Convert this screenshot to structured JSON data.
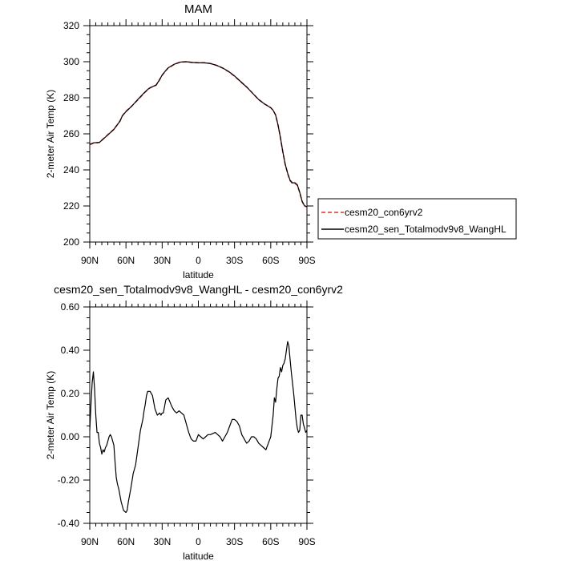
{
  "chart_data": [
    {
      "type": "line",
      "title": "MAM",
      "xlabel": "latitude",
      "ylabel": "2-meter Air Temp (K)",
      "xlim": [
        90,
        -90
      ],
      "ylim": [
        200,
        320
      ],
      "x_ticks": [
        90,
        60,
        30,
        0,
        -30,
        -60,
        -90
      ],
      "x_tick_labels": [
        "90N",
        "60N",
        "30N",
        "0",
        "30S",
        "60S",
        "90S"
      ],
      "y_ticks": [
        200,
        220,
        240,
        260,
        280,
        300,
        320
      ],
      "y_tick_labels": [
        "200",
        "220",
        "240",
        "260",
        "280",
        "300",
        "320"
      ],
      "grid": false,
      "legend_position": "right",
      "series": [
        {
          "name": "cesm20_con6yrv2",
          "color": "#e0302c",
          "dash": "dashed",
          "x": [
            90,
            87,
            84,
            82,
            80,
            75,
            70,
            65,
            63,
            60,
            55,
            50,
            45,
            42,
            40,
            35,
            33,
            30,
            27,
            25,
            20,
            15,
            10,
            5,
            0,
            -5,
            -10,
            -15,
            -20,
            -25,
            -30,
            -35,
            -40,
            -45,
            -50,
            -55,
            -60,
            -62,
            -64,
            -66,
            -68,
            -70,
            -72,
            -74,
            -76,
            -78,
            -80,
            -82,
            -84,
            -86,
            -88,
            -90
          ],
          "y": [
            254,
            254.8,
            255,
            255.2,
            256.5,
            259.5,
            262.5,
            267,
            270,
            272.5,
            275.5,
            279,
            282.5,
            284.5,
            285.5,
            287,
            289,
            292.5,
            295,
            296.5,
            298.5,
            299.8,
            300,
            299.6,
            299.4,
            299.4,
            299,
            298,
            296.5,
            294.5,
            292,
            289,
            286,
            282.5,
            279,
            276.5,
            274.5,
            273,
            270.5,
            265,
            258,
            250,
            243,
            238,
            234,
            232.5,
            232.5,
            231.5,
            227.5,
            222.5,
            220,
            219.5
          ]
        },
        {
          "name": "cesm20_sen_Totalmodv9v8_WangHL",
          "color": "#000000",
          "dash": "solid",
          "x": [
            90,
            87,
            84,
            82,
            80,
            75,
            70,
            65,
            63,
            60,
            55,
            50,
            45,
            42,
            40,
            35,
            33,
            30,
            27,
            25,
            20,
            15,
            10,
            5,
            0,
            -5,
            -10,
            -15,
            -20,
            -25,
            -30,
            -35,
            -40,
            -45,
            -50,
            -55,
            -60,
            -62,
            -64,
            -66,
            -68,
            -70,
            -72,
            -74,
            -76,
            -78,
            -80,
            -82,
            -84,
            -86,
            -88,
            -90
          ],
          "y": [
            254.2,
            255,
            255.2,
            255.3,
            256.4,
            259.4,
            262.5,
            267,
            270,
            272.3,
            275.5,
            279.2,
            282.7,
            284.6,
            285.6,
            287.1,
            289.1,
            292.6,
            295.1,
            296.6,
            298.6,
            299.8,
            300,
            299.6,
            299.4,
            299.4,
            299,
            298,
            296.6,
            294.6,
            292.1,
            289,
            286,
            282.5,
            279,
            276.5,
            274.5,
            273,
            270.5,
            265,
            258,
            250,
            243.1,
            238.2,
            234.3,
            232.8,
            232.9,
            231.8,
            227.6,
            222.6,
            220.1,
            219.6
          ]
        }
      ]
    },
    {
      "type": "line",
      "title": "cesm20_sen_Totalmodv9v8_WangHL - cesm20_con6yrv2",
      "xlabel": "latitude",
      "ylabel": "2-meter Air Temp (K)",
      "xlim": [
        90,
        -90
      ],
      "ylim": [
        -0.4,
        0.6
      ],
      "x_ticks": [
        90,
        60,
        30,
        0,
        -30,
        -60,
        -90
      ],
      "x_tick_labels": [
        "90N",
        "60N",
        "30N",
        "0",
        "30S",
        "60S",
        "90S"
      ],
      "y_ticks": [
        -0.4,
        -0.2,
        0,
        0.2,
        0.4,
        0.6
      ],
      "y_tick_labels": [
        "-0.40",
        "-0.20",
        "0.00",
        "0.20",
        "0.40",
        "0.60"
      ],
      "grid": false,
      "series": [
        {
          "color": "#000000",
          "dash": "solid",
          "x": [
            90,
            89,
            88,
            87,
            86,
            85,
            84,
            83,
            82,
            81,
            80,
            79,
            78,
            77,
            76,
            75,
            74,
            73,
            72,
            71,
            70,
            69,
            68,
            67,
            66,
            64,
            62,
            60,
            59,
            58,
            56,
            54,
            52,
            50,
            48,
            46,
            45,
            44,
            43,
            42,
            40,
            38,
            36,
            34,
            32,
            31,
            30,
            29,
            28,
            27,
            25,
            22,
            20,
            18,
            16,
            14,
            12,
            10,
            8,
            6,
            4,
            2,
            0,
            -2,
            -4,
            -6,
            -8,
            -10,
            -12,
            -14,
            -16,
            -18,
            -20,
            -22,
            -24,
            -26,
            -28,
            -30,
            -32,
            -34,
            -36,
            -38,
            -40,
            -42,
            -44,
            -46,
            -48,
            -50,
            -52,
            -54,
            -56,
            -58,
            -60,
            -62,
            -63,
            -64,
            -65,
            -66,
            -67,
            -68,
            -69,
            -70,
            -71,
            -72,
            -73,
            -74,
            -75,
            -76,
            -77,
            -78,
            -79,
            -80,
            -81,
            -82,
            -83,
            -84,
            -85,
            -86,
            -87,
            -88,
            -89,
            -90
          ],
          "y": [
            0.03,
            0.15,
            0.25,
            0.3,
            0.22,
            0.1,
            0.02,
            0.02,
            -0.03,
            -0.05,
            -0.08,
            -0.06,
            -0.07,
            -0.05,
            -0.04,
            -0.02,
            0,
            0.01,
            0,
            -0.02,
            -0.04,
            -0.12,
            -0.19,
            -0.22,
            -0.24,
            -0.3,
            -0.34,
            -0.35,
            -0.34,
            -0.3,
            -0.24,
            -0.17,
            -0.13,
            -0.05,
            0.03,
            0.08,
            0.12,
            0.15,
            0.19,
            0.21,
            0.21,
            0.19,
            0.13,
            0.1,
            0.11,
            0.1,
            0.11,
            0.11,
            0.14,
            0.17,
            0.18,
            0.14,
            0.12,
            0.11,
            0.12,
            0.11,
            0.1,
            0.06,
            0.02,
            -0.01,
            -0.02,
            -0.02,
            0.01,
            0,
            -0.01,
            0,
            0.01,
            0.01,
            0.015,
            0.02,
            0.01,
            0,
            -0.02,
            0,
            0.02,
            0.05,
            0.08,
            0.08,
            0.07,
            0.05,
            0.01,
            -0.01,
            -0.03,
            -0.02,
            0,
            0,
            -0.01,
            -0.03,
            -0.04,
            -0.05,
            -0.06,
            -0.03,
            0,
            0.1,
            0.18,
            0.16,
            0.22,
            0.27,
            0.28,
            0.32,
            0.3,
            0.33,
            0.34,
            0.36,
            0.4,
            0.44,
            0.42,
            0.36,
            0.3,
            0.25,
            0.2,
            0.14,
            0.08,
            0.04,
            0.02,
            0.03,
            0.1,
            0.1,
            0.06,
            0.04,
            0.02,
            0.03
          ]
        }
      ]
    }
  ]
}
